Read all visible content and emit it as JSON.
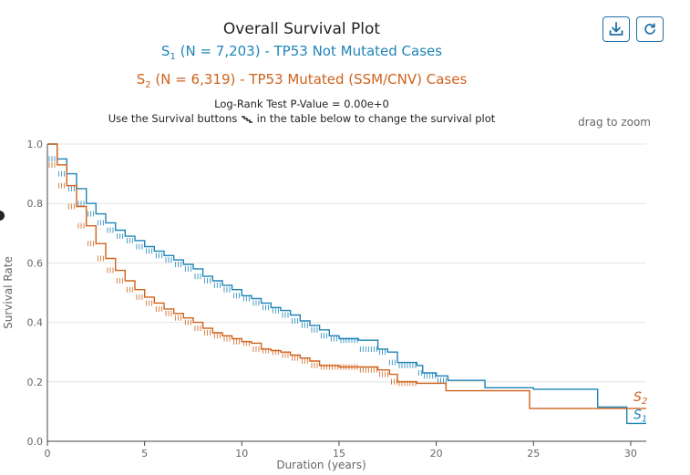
{
  "header": {
    "title": "Overall Survival Plot",
    "series1_prefix": "S",
    "series1_sub": "1",
    "series1_text": " (N = 7,203) - TP53 Not Mutated Cases",
    "series2_prefix": "S",
    "series2_sub": "2",
    "series2_text": " (N = 6,319) - TP53 Mutated (SSM/CNV) Cases",
    "pvalue": "Log-Rank Test P-Value = 0.00e+0",
    "instruction_before": "Use the Survival buttons",
    "instruction_after": "in the table below to change the survival plot",
    "drag_hint": "drag to zoom"
  },
  "icons": {
    "download": "download-icon",
    "reset": "reset-icon",
    "survival": "survival-curve-icon"
  },
  "colors": {
    "s1": "#1f84b8",
    "s2": "#d0621c",
    "grid": "#e4e4e4"
  },
  "chart_data": {
    "type": "line",
    "title": "Overall Survival Plot",
    "xlabel": "Duration (years)",
    "ylabel": "Survival Rate",
    "xlim": [
      0,
      30.8
    ],
    "ylim": [
      0,
      1.0
    ],
    "xticks": [
      0,
      5,
      10,
      15,
      20,
      25,
      30
    ],
    "yticks": [
      0.0,
      0.2,
      0.4,
      0.6,
      0.8,
      1.0
    ],
    "ytick_labels": [
      "0.0",
      "0.2",
      "0.4",
      "0.6",
      "0.8",
      "1.0"
    ],
    "grid": true,
    "series": [
      {
        "name": "S1",
        "label_main": "S",
        "label_sub": "1",
        "color": "#1f84b8",
        "x": [
          0,
          0.5,
          1,
          1.5,
          2,
          2.5,
          3,
          3.5,
          4,
          4.5,
          5,
          5.5,
          6,
          6.5,
          7,
          7.5,
          8,
          8.5,
          9,
          9.5,
          10,
          10.5,
          11,
          11.5,
          12,
          12.5,
          13,
          13.5,
          14,
          14.5,
          15,
          16,
          17,
          17.5,
          18,
          19,
          19.3,
          20,
          20.6,
          22.5,
          25,
          28.3,
          29.8,
          30.8
        ],
        "y": [
          1.0,
          0.95,
          0.9,
          0.85,
          0.8,
          0.765,
          0.735,
          0.71,
          0.69,
          0.675,
          0.655,
          0.64,
          0.625,
          0.61,
          0.595,
          0.58,
          0.555,
          0.54,
          0.525,
          0.51,
          0.49,
          0.48,
          0.465,
          0.45,
          0.44,
          0.425,
          0.405,
          0.39,
          0.375,
          0.355,
          0.345,
          0.34,
          0.31,
          0.3,
          0.265,
          0.255,
          0.23,
          0.22,
          0.205,
          0.18,
          0.175,
          0.115,
          0.06,
          0.06
        ]
      },
      {
        "name": "S2",
        "label_main": "S",
        "label_sub": "2",
        "color": "#d0621c",
        "x": [
          0,
          0.5,
          1,
          1.5,
          2,
          2.5,
          3,
          3.5,
          4,
          4.5,
          5,
          5.5,
          6,
          6.5,
          7,
          7.5,
          8,
          8.5,
          9,
          9.5,
          10,
          10.5,
          11,
          11.5,
          12,
          12.5,
          13,
          13.5,
          14,
          15,
          16,
          17,
          17.6,
          18,
          19,
          20.5,
          22,
          24.8,
          28,
          30.8
        ],
        "y": [
          1.0,
          0.93,
          0.86,
          0.79,
          0.725,
          0.665,
          0.615,
          0.575,
          0.54,
          0.51,
          0.485,
          0.465,
          0.445,
          0.43,
          0.415,
          0.4,
          0.38,
          0.365,
          0.355,
          0.345,
          0.335,
          0.33,
          0.31,
          0.305,
          0.3,
          0.29,
          0.28,
          0.27,
          0.255,
          0.25,
          0.25,
          0.24,
          0.225,
          0.2,
          0.195,
          0.17,
          0.17,
          0.11,
          0.11,
          0.11
        ]
      }
    ]
  }
}
